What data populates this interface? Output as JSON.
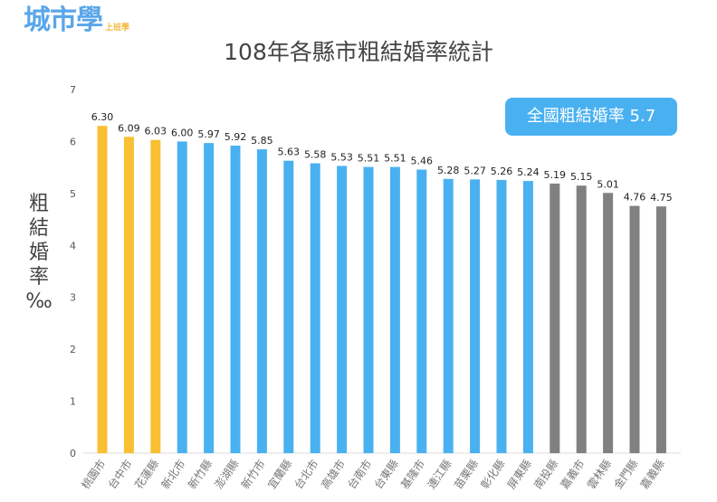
{
  "logo": {
    "text": "城市學",
    "sub": "上班學"
  },
  "colors": {
    "top3": "#f8c032",
    "middle": "#4ab1f1",
    "bottom5": "#808080",
    "badge": "#4ab1f1"
  },
  "chart_data": {
    "type": "bar",
    "title": "108年各縣市粗結婚率統計",
    "ylabel": "粗結婚率‰",
    "ylim": [
      0,
      7
    ],
    "yticks": [
      0,
      1,
      2,
      3,
      4,
      5,
      6,
      7
    ],
    "grid": false,
    "annotation": "全國粗結婚率 5.7",
    "categories": [
      "桃園市",
      "台中市",
      "花蓮縣",
      "新北市",
      "新竹縣",
      "澎湖縣",
      "新竹市",
      "宜蘭縣",
      "台北市",
      "高雄市",
      "台南市",
      "台東縣",
      "基隆市",
      "連江縣",
      "苗栗縣",
      "彰化縣",
      "屏東縣",
      "南投縣",
      "嘉義市",
      "雲林縣",
      "金門縣",
      "嘉義縣"
    ],
    "values": [
      6.3,
      6.09,
      6.03,
      6.0,
      5.97,
      5.92,
      5.85,
      5.63,
      5.58,
      5.53,
      5.51,
      5.51,
      5.46,
      5.28,
      5.27,
      5.26,
      5.24,
      5.19,
      5.15,
      5.01,
      4.76,
      4.75
    ],
    "labels": [
      "6.30",
      "6.09",
      "6.03",
      "6.00",
      "5.97",
      "5.92",
      "5.85",
      "5.63",
      "5.58",
      "5.53",
      "5.51",
      "5.51",
      "5.46",
      "5.28",
      "5.27",
      "5.26",
      "5.24",
      "5.19",
      "5.15",
      "5.01",
      "4.76",
      "4.75"
    ],
    "color_groups": [
      "top3",
      "top3",
      "top3",
      "middle",
      "middle",
      "middle",
      "middle",
      "middle",
      "middle",
      "middle",
      "middle",
      "middle",
      "middle",
      "middle",
      "middle",
      "middle",
      "middle",
      "bottom5",
      "bottom5",
      "bottom5",
      "bottom5",
      "bottom5"
    ]
  }
}
